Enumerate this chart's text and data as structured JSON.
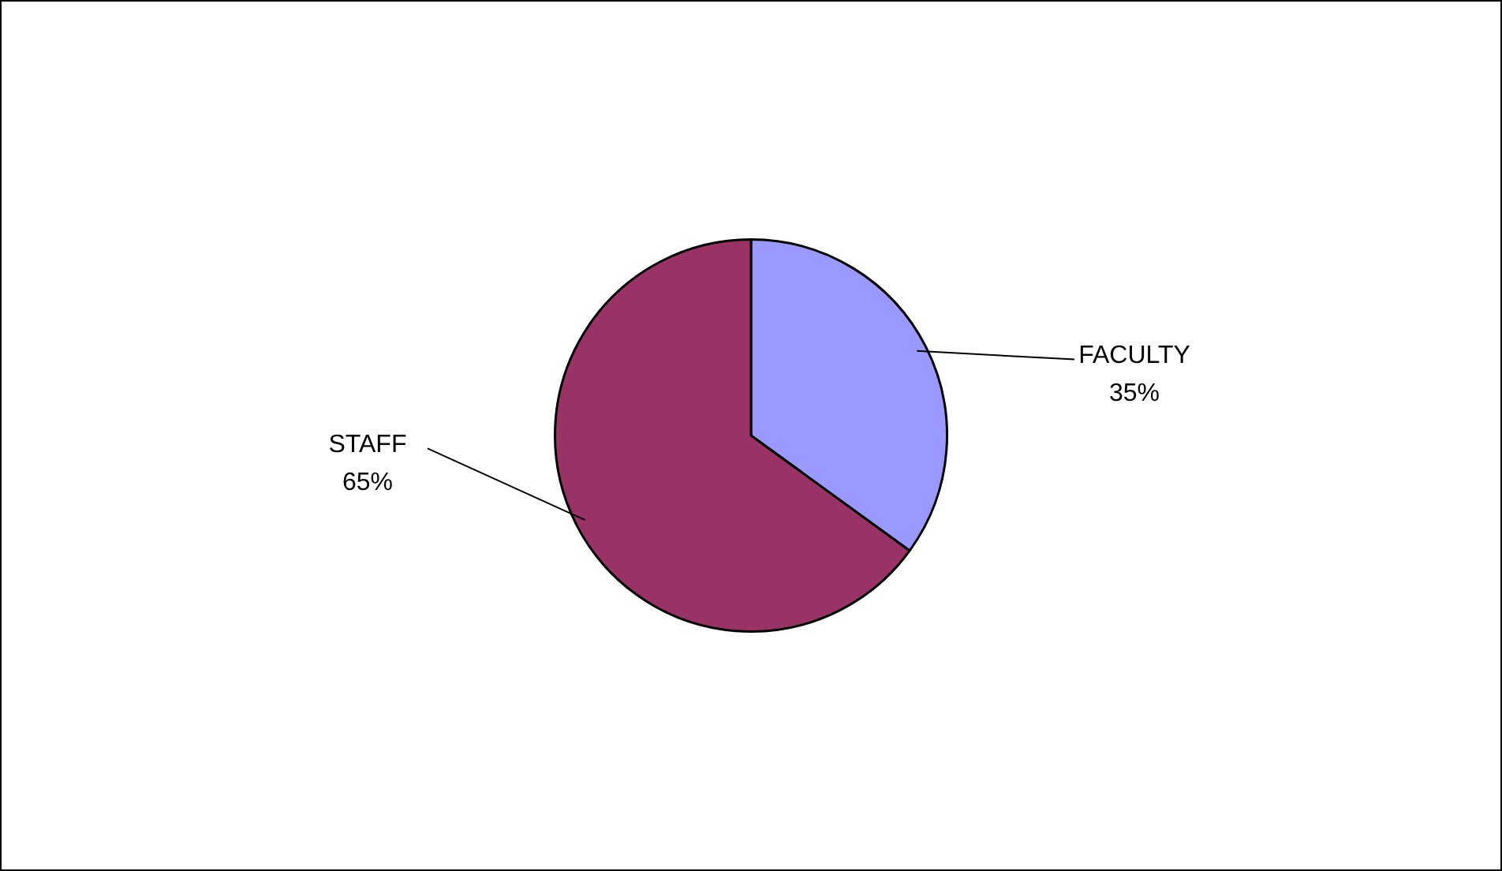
{
  "chart_data": {
    "type": "pie",
    "categories": [
      "FACULTY",
      "STAFF"
    ],
    "values": [
      35,
      65
    ],
    "colors": [
      "#9999ff",
      "#993366"
    ],
    "value_labels": [
      "35%",
      "65%"
    ],
    "legend": false
  }
}
